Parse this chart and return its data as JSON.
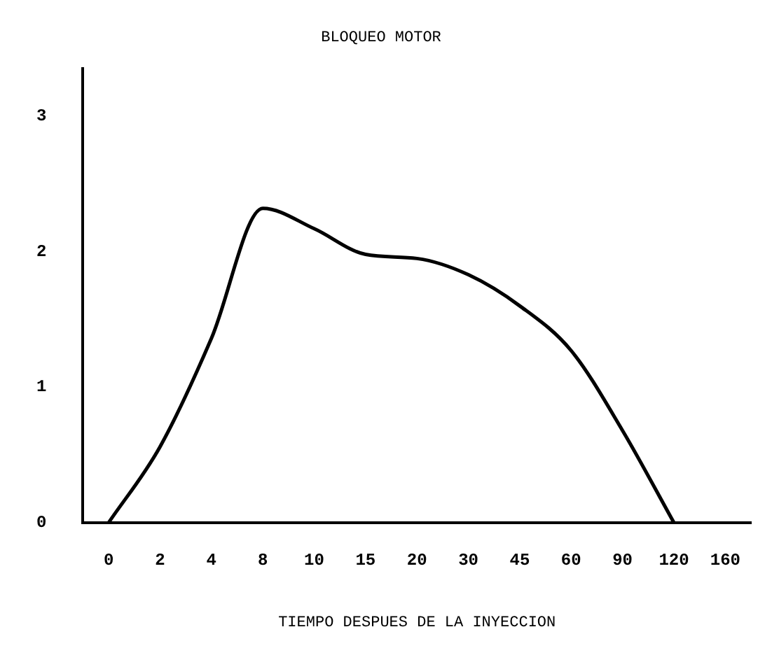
{
  "chart_data": {
    "type": "line",
    "title": "BLOQUEO MOTOR",
    "xlabel": "TIEMPO DESPUES DE LA INYECCION",
    "categories": [
      "0",
      "2",
      "4",
      "8",
      "10",
      "15",
      "20",
      "30",
      "45",
      "60",
      "90",
      "120",
      "160"
    ],
    "series": [
      {
        "color": "#000000",
        "values": [
          0,
          0.56,
          1.36,
          2.32,
          2.17,
          1.98,
          1.95,
          1.83,
          1.6,
          1.27,
          0.68,
          0,
          null
        ]
      }
    ],
    "ylim": [
      0,
      3.35
    ],
    "yticks": [
      0,
      1,
      2,
      3
    ],
    "grid": false,
    "legend": false,
    "marker": "none",
    "line_style": "solid"
  }
}
